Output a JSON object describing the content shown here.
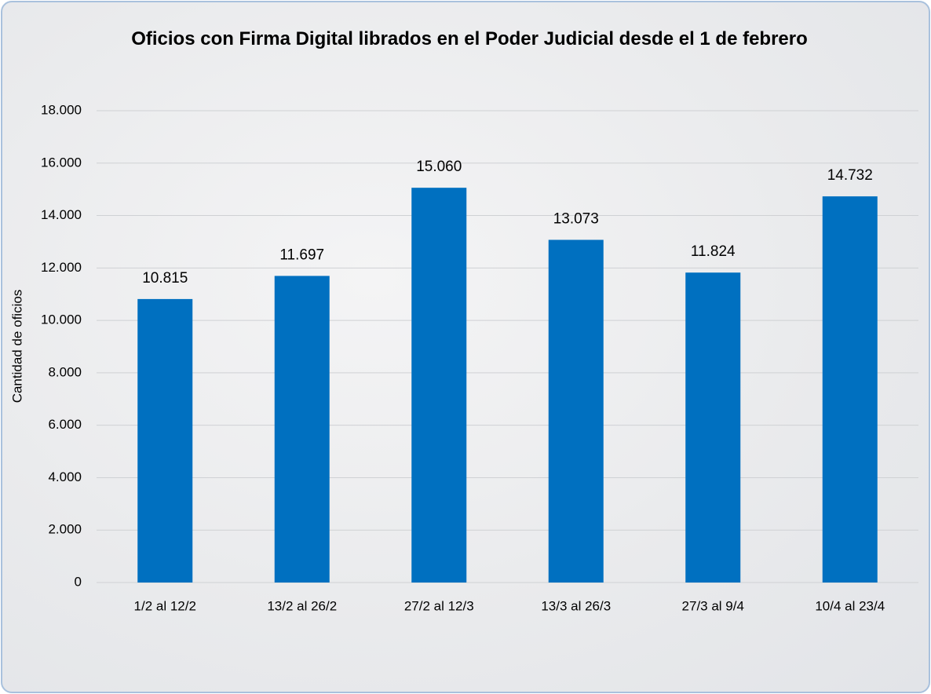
{
  "chart_data": {
    "type": "bar",
    "title": "Oficios con Firma Digital librados en el Poder Judicial desde el 1 de febrero",
    "y_label": "Cantidad de oficios",
    "categories": [
      "1/2 al 12/2",
      "13/2 al 26/2",
      "27/2 al 12/3",
      "13/3 al 26/3",
      "27/3 al 9/4",
      "10/4 al 23/4"
    ],
    "values": [
      10815,
      11697,
      15060,
      13073,
      11824,
      14732
    ],
    "value_labels": [
      "10.815",
      "11.697",
      "15.060",
      "13.073",
      "11.824",
      "14.732"
    ],
    "color": "#0070c0",
    "ylim": [
      0,
      18000
    ],
    "yticks": [
      0,
      {
        "value": 2000,
        "label": "2.000"
      },
      {
        "value": 4000,
        "label": "4.000"
      },
      {
        "value": 6000,
        "label": "6.000"
      },
      {
        "value": 8000,
        "label": "8.000"
      },
      {
        "value": 10000,
        "label": "10.000"
      },
      {
        "value": 12000,
        "label": "12.000"
      },
      {
        "value": 14000,
        "label": "14.000"
      },
      {
        "value": 16000,
        "label": "16.000"
      },
      {
        "value": 18000,
        "label": "18.000"
      }
    ],
    "grid": true
  }
}
